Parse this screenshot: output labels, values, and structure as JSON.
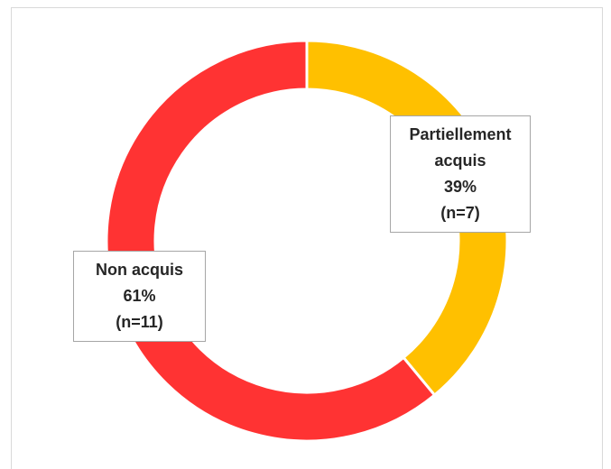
{
  "chart_data": {
    "type": "donut",
    "categories": [
      "Partiellement acquis",
      "Non acquis"
    ],
    "values": [
      39,
      61
    ],
    "value_labels": [
      "39%",
      "61%"
    ],
    "counts": [
      7,
      11
    ],
    "count_labels": [
      "(n=7)",
      "(n=11)"
    ],
    "colors": [
      "#FFC000",
      "#FF3333"
    ]
  }
}
